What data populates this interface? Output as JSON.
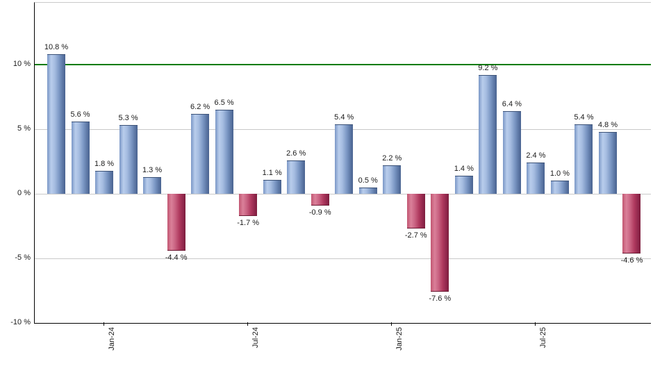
{
  "chart_data": {
    "type": "bar",
    "title": "",
    "xlabel": "",
    "ylabel": "",
    "unit": "%",
    "values": [
      10.8,
      5.6,
      1.8,
      5.3,
      1.3,
      -4.4,
      6.2,
      6.5,
      -1.7,
      1.1,
      2.6,
      -0.9,
      5.4,
      0.5,
      2.2,
      -2.7,
      -7.6,
      1.4,
      9.2,
      6.4,
      2.4,
      1.0,
      5.4,
      4.8,
      -4.6
    ],
    "bar_labels": [
      "10.8 %",
      "5.6 %",
      "1.8 %",
      "5.3 %",
      "1.3 %",
      "-4.4 %",
      "6.2 %",
      "6.5 %",
      "-1.7 %",
      "1.1 %",
      "2.6 %",
      "-0.9 %",
      "5.4 %",
      "0.5 %",
      "2.2 %",
      "-2.7 %",
      "-7.6 %",
      "1.4 %",
      "9.2 %",
      "6.4 %",
      "2.4 %",
      "1.0 %",
      "5.4 %",
      "4.8 %",
      "-4.6 %"
    ],
    "x_ticks": [
      {
        "index": 2,
        "label": "Jan-24"
      },
      {
        "index": 8,
        "label": "Jul-24"
      },
      {
        "index": 14,
        "label": "Jan-25"
      },
      {
        "index": 20,
        "label": "Jul-25"
      }
    ],
    "y_ticks": [
      {
        "value": 10,
        "label": "10 %"
      },
      {
        "value": 5,
        "label": "5 %"
      },
      {
        "value": 0,
        "label": "0 %"
      },
      {
        "value": -5,
        "label": "-5 %"
      },
      {
        "value": -10,
        "label": "-10 %"
      }
    ],
    "grid_values": [
      5,
      0,
      -5
    ],
    "reference_line": {
      "value": 10,
      "color": "#007b00"
    },
    "ylim": [
      -10,
      14.8
    ],
    "grid_on": true,
    "legend_position": "none",
    "colors": {
      "positive_bar_mid": "#7a97c6",
      "positive_bar_light": "#b9cdec",
      "positive_bar_dark": "#4a6390",
      "negative_bar_mid": "#c25672",
      "negative_bar_light": "#da8099",
      "negative_bar_dark": "#7d1f3d",
      "gridline": "#c9c9c9",
      "axis": "#000000",
      "top_border": "#c9c9c9",
      "value_label": "#1a1a1a",
      "background": "#ffffff"
    }
  }
}
